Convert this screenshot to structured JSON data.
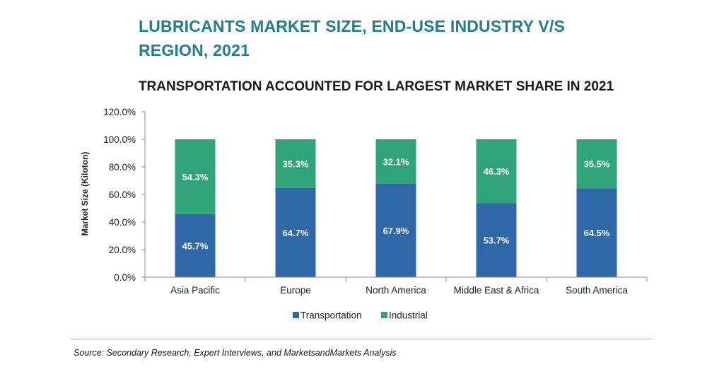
{
  "title": "LUBRICANTS MARKET SIZE, END-USE INDUSTRY V/S REGION, 2021",
  "subtitle": "TRANSPORTATION ACCOUNTED FOR LARGEST MARKET SHARE IN 2021",
  "source": "Source: Secondary Research, Expert Interviews, and MarketsandMarkets Analysis",
  "colors": {
    "transportation": "#2f67a9",
    "industrial": "#2fa37a"
  },
  "chart_data": {
    "type": "bar",
    "stacked": true,
    "categories": [
      "Asia Pacific",
      "Europe",
      "North America",
      "Middle East & Africa",
      "South America"
    ],
    "series": [
      {
        "name": "Transportation",
        "values": [
          45.7,
          64.7,
          67.9,
          53.7,
          64.5
        ],
        "labels": [
          "45.7%",
          "64.7%",
          "67.9%",
          "53.7%",
          "64.5%"
        ]
      },
      {
        "name": "Industrial",
        "values": [
          54.3,
          35.3,
          32.1,
          46.3,
          35.5
        ],
        "labels": [
          "54.3%",
          "35.3%",
          "32.1%",
          "46.3%",
          "35.5%"
        ]
      }
    ],
    "ylabel": "Market Size (Kiloton)",
    "xlabel": "",
    "ylim": [
      0,
      120
    ],
    "yticks": [
      "0.0%",
      "20.0%",
      "40.0%",
      "60.0%",
      "80.0%",
      "100.0%",
      "120.0%"
    ],
    "grid": false,
    "legend_position": "bottom"
  }
}
